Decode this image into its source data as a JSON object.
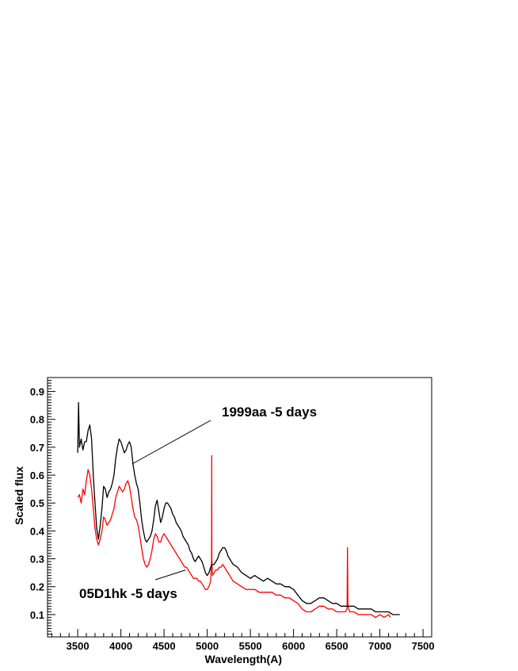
{
  "chart_data": {
    "type": "line",
    "xlabel": "Wavelength(A)",
    "ylabel": "Scaled flux",
    "xlim": [
      3150,
      7600
    ],
    "ylim": [
      0.02,
      0.95
    ],
    "xticks": [
      3500,
      4000,
      4500,
      5000,
      5500,
      6000,
      6500,
      7000,
      7500
    ],
    "yticks": [
      0.1,
      0.2,
      0.3,
      0.4,
      0.5,
      0.6,
      0.7,
      0.8,
      0.9
    ],
    "grid": false,
    "legend": "none",
    "series": [
      {
        "name": "1999aa -5 days",
        "color": "#000000",
        "points": [
          [
            3500,
            0.68
          ],
          [
            3510,
            0.86
          ],
          [
            3520,
            0.7
          ],
          [
            3540,
            0.73
          ],
          [
            3560,
            0.69
          ],
          [
            3580,
            0.72
          ],
          [
            3600,
            0.72
          ],
          [
            3620,
            0.76
          ],
          [
            3640,
            0.78
          ],
          [
            3660,
            0.73
          ],
          [
            3680,
            0.6
          ],
          [
            3700,
            0.5
          ],
          [
            3720,
            0.41
          ],
          [
            3740,
            0.37
          ],
          [
            3760,
            0.42
          ],
          [
            3780,
            0.48
          ],
          [
            3800,
            0.56
          ],
          [
            3820,
            0.55
          ],
          [
            3840,
            0.52
          ],
          [
            3860,
            0.54
          ],
          [
            3880,
            0.55
          ],
          [
            3900,
            0.57
          ],
          [
            3920,
            0.6
          ],
          [
            3940,
            0.66
          ],
          [
            3960,
            0.7
          ],
          [
            3980,
            0.73
          ],
          [
            4000,
            0.72
          ],
          [
            4020,
            0.7
          ],
          [
            4040,
            0.68
          ],
          [
            4060,
            0.69
          ],
          [
            4080,
            0.71
          ],
          [
            4100,
            0.72
          ],
          [
            4120,
            0.7
          ],
          [
            4140,
            0.64
          ],
          [
            4160,
            0.6
          ],
          [
            4180,
            0.57
          ],
          [
            4200,
            0.55
          ],
          [
            4220,
            0.5
          ],
          [
            4240,
            0.44
          ],
          [
            4260,
            0.4
          ],
          [
            4280,
            0.37
          ],
          [
            4300,
            0.36
          ],
          [
            4320,
            0.37
          ],
          [
            4340,
            0.38
          ],
          [
            4360,
            0.4
          ],
          [
            4380,
            0.44
          ],
          [
            4400,
            0.49
          ],
          [
            4420,
            0.51
          ],
          [
            4440,
            0.47
          ],
          [
            4460,
            0.43
          ],
          [
            4480,
            0.45
          ],
          [
            4500,
            0.48
          ],
          [
            4520,
            0.5
          ],
          [
            4540,
            0.5
          ],
          [
            4560,
            0.49
          ],
          [
            4580,
            0.48
          ],
          [
            4600,
            0.46
          ],
          [
            4620,
            0.45
          ],
          [
            4640,
            0.43
          ],
          [
            4660,
            0.42
          ],
          [
            4680,
            0.41
          ],
          [
            4700,
            0.4
          ],
          [
            4720,
            0.38
          ],
          [
            4740,
            0.37
          ],
          [
            4760,
            0.36
          ],
          [
            4780,
            0.35
          ],
          [
            4800,
            0.33
          ],
          [
            4820,
            0.32
          ],
          [
            4840,
            0.3
          ],
          [
            4860,
            0.29
          ],
          [
            4880,
            0.3
          ],
          [
            4900,
            0.31
          ],
          [
            4920,
            0.3
          ],
          [
            4940,
            0.29
          ],
          [
            4960,
            0.27
          ],
          [
            4980,
            0.25
          ],
          [
            5000,
            0.24
          ],
          [
            5020,
            0.25
          ],
          [
            5040,
            0.27
          ],
          [
            5060,
            0.28
          ],
          [
            5080,
            0.28
          ],
          [
            5100,
            0.29
          ],
          [
            5120,
            0.3
          ],
          [
            5140,
            0.32
          ],
          [
            5160,
            0.33
          ],
          [
            5180,
            0.34
          ],
          [
            5200,
            0.34
          ],
          [
            5220,
            0.33
          ],
          [
            5240,
            0.31
          ],
          [
            5260,
            0.3
          ],
          [
            5280,
            0.29
          ],
          [
            5300,
            0.28
          ],
          [
            5350,
            0.27
          ],
          [
            5400,
            0.25
          ],
          [
            5450,
            0.24
          ],
          [
            5500,
            0.23
          ],
          [
            5550,
            0.24
          ],
          [
            5600,
            0.23
          ],
          [
            5650,
            0.22
          ],
          [
            5700,
            0.23
          ],
          [
            5750,
            0.22
          ],
          [
            5800,
            0.21
          ],
          [
            5850,
            0.21
          ],
          [
            5900,
            0.2
          ],
          [
            5950,
            0.2
          ],
          [
            6000,
            0.19
          ],
          [
            6050,
            0.17
          ],
          [
            6100,
            0.15
          ],
          [
            6150,
            0.14
          ],
          [
            6200,
            0.14
          ],
          [
            6250,
            0.15
          ],
          [
            6300,
            0.16
          ],
          [
            6350,
            0.16
          ],
          [
            6400,
            0.15
          ],
          [
            6450,
            0.14
          ],
          [
            6500,
            0.14
          ],
          [
            6550,
            0.13
          ],
          [
            6600,
            0.13
          ],
          [
            6650,
            0.13
          ],
          [
            6700,
            0.13
          ],
          [
            6750,
            0.12
          ],
          [
            6800,
            0.12
          ],
          [
            6850,
            0.12
          ],
          [
            6900,
            0.12
          ],
          [
            6950,
            0.11
          ],
          [
            7000,
            0.11
          ],
          [
            7050,
            0.11
          ],
          [
            7100,
            0.11
          ],
          [
            7150,
            0.1
          ],
          [
            7200,
            0.1
          ],
          [
            7230,
            0.1
          ]
        ]
      },
      {
        "name": "05D1hk -5 days",
        "color": "#ff0000",
        "points": [
          [
            3500,
            0.52
          ],
          [
            3520,
            0.53
          ],
          [
            3540,
            0.5
          ],
          [
            3560,
            0.55
          ],
          [
            3580,
            0.53
          ],
          [
            3600,
            0.58
          ],
          [
            3620,
            0.62
          ],
          [
            3640,
            0.6
          ],
          [
            3660,
            0.55
          ],
          [
            3680,
            0.48
          ],
          [
            3700,
            0.41
          ],
          [
            3720,
            0.37
          ],
          [
            3740,
            0.35
          ],
          [
            3760,
            0.37
          ],
          [
            3780,
            0.4
          ],
          [
            3800,
            0.45
          ],
          [
            3820,
            0.44
          ],
          [
            3840,
            0.42
          ],
          [
            3860,
            0.43
          ],
          [
            3880,
            0.44
          ],
          [
            3900,
            0.46
          ],
          [
            3920,
            0.48
          ],
          [
            3940,
            0.52
          ],
          [
            3960,
            0.54
          ],
          [
            3980,
            0.56
          ],
          [
            4000,
            0.55
          ],
          [
            4020,
            0.54
          ],
          [
            4040,
            0.55
          ],
          [
            4060,
            0.57
          ],
          [
            4080,
            0.58
          ],
          [
            4100,
            0.56
          ],
          [
            4120,
            0.52
          ],
          [
            4140,
            0.48
          ],
          [
            4160,
            0.45
          ],
          [
            4180,
            0.44
          ],
          [
            4200,
            0.42
          ],
          [
            4220,
            0.38
          ],
          [
            4240,
            0.34
          ],
          [
            4260,
            0.3
          ],
          [
            4280,
            0.28
          ],
          [
            4300,
            0.27
          ],
          [
            4320,
            0.28
          ],
          [
            4340,
            0.3
          ],
          [
            4360,
            0.33
          ],
          [
            4380,
            0.37
          ],
          [
            4400,
            0.39
          ],
          [
            4420,
            0.38
          ],
          [
            4440,
            0.36
          ],
          [
            4460,
            0.36
          ],
          [
            4480,
            0.38
          ],
          [
            4500,
            0.39
          ],
          [
            4520,
            0.38
          ],
          [
            4540,
            0.37
          ],
          [
            4560,
            0.36
          ],
          [
            4580,
            0.35
          ],
          [
            4600,
            0.34
          ],
          [
            4620,
            0.33
          ],
          [
            4640,
            0.32
          ],
          [
            4660,
            0.31
          ],
          [
            4680,
            0.3
          ],
          [
            4700,
            0.29
          ],
          [
            4720,
            0.28
          ],
          [
            4740,
            0.27
          ],
          [
            4760,
            0.27
          ],
          [
            4780,
            0.26
          ],
          [
            4800,
            0.25
          ],
          [
            4820,
            0.24
          ],
          [
            4840,
            0.23
          ],
          [
            4860,
            0.23
          ],
          [
            4880,
            0.23
          ],
          [
            4900,
            0.22
          ],
          [
            4920,
            0.22
          ],
          [
            4940,
            0.21
          ],
          [
            4960,
            0.2
          ],
          [
            4980,
            0.19
          ],
          [
            5000,
            0.19
          ],
          [
            5020,
            0.2
          ],
          [
            5040,
            0.22
          ],
          [
            5050,
            0.3
          ],
          [
            5052,
            0.67
          ],
          [
            5054,
            0.3
          ],
          [
            5060,
            0.24
          ],
          [
            5080,
            0.25
          ],
          [
            5100,
            0.26
          ],
          [
            5120,
            0.26
          ],
          [
            5140,
            0.27
          ],
          [
            5160,
            0.27
          ],
          [
            5180,
            0.28
          ],
          [
            5200,
            0.27
          ],
          [
            5220,
            0.26
          ],
          [
            5240,
            0.25
          ],
          [
            5260,
            0.24
          ],
          [
            5280,
            0.23
          ],
          [
            5300,
            0.22
          ],
          [
            5350,
            0.21
          ],
          [
            5400,
            0.2
          ],
          [
            5450,
            0.19
          ],
          [
            5500,
            0.19
          ],
          [
            5550,
            0.19
          ],
          [
            5600,
            0.18
          ],
          [
            5650,
            0.18
          ],
          [
            5700,
            0.18
          ],
          [
            5750,
            0.18
          ],
          [
            5800,
            0.17
          ],
          [
            5850,
            0.17
          ],
          [
            5900,
            0.16
          ],
          [
            5950,
            0.16
          ],
          [
            6000,
            0.15
          ],
          [
            6050,
            0.14
          ],
          [
            6100,
            0.12
          ],
          [
            6150,
            0.11
          ],
          [
            6200,
            0.11
          ],
          [
            6250,
            0.12
          ],
          [
            6300,
            0.13
          ],
          [
            6350,
            0.13
          ],
          [
            6400,
            0.12
          ],
          [
            6450,
            0.12
          ],
          [
            6500,
            0.11
          ],
          [
            6550,
            0.11
          ],
          [
            6600,
            0.11
          ],
          [
            6620,
            0.12
          ],
          [
            6625,
            0.34
          ],
          [
            6630,
            0.13
          ],
          [
            6650,
            0.11
          ],
          [
            6700,
            0.11
          ],
          [
            6750,
            0.1
          ],
          [
            6800,
            0.1
          ],
          [
            6850,
            0.1
          ],
          [
            6900,
            0.1
          ],
          [
            6950,
            0.09
          ],
          [
            7000,
            0.1
          ],
          [
            7050,
            0.09
          ],
          [
            7100,
            0.1
          ],
          [
            7120,
            0.09
          ]
        ]
      }
    ],
    "annotations": [
      {
        "text": "1999aa -5 days",
        "series": 0,
        "points_to": [
          4130,
          0.64
        ]
      },
      {
        "text": "05D1hk -5 days",
        "series": 1,
        "points_to": [
          4750,
          0.26
        ]
      }
    ]
  }
}
